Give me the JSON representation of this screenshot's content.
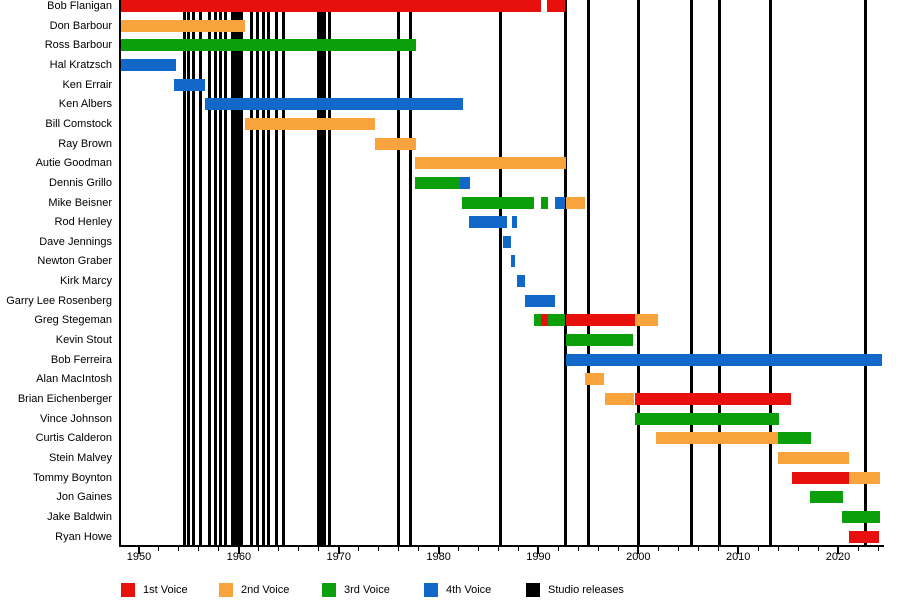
{
  "legend": {
    "items": [
      {
        "label": "1st Voice",
        "voice": "1st"
      },
      {
        "label": "2nd Voice",
        "voice": "2nd"
      },
      {
        "label": "3rd Voice",
        "voice": "3rd"
      },
      {
        "label": "4th Voice",
        "voice": "4th"
      },
      {
        "label": "Studio releases",
        "voice": "studio"
      }
    ]
  },
  "colors": {
    "1st": "#e8100d",
    "2nd": "#f8a33b",
    "3rd": "#0ba00b",
    "4th": "#1168c8",
    "studio": "#000000",
    "axis": "#000000",
    "background": "#ffffff"
  },
  "chart_data": {
    "type": "gantt",
    "title": "",
    "xlabel": "",
    "ylabel": "",
    "grid": false,
    "legend_position": "bottom",
    "x_axis": {
      "min": 1948.2,
      "max": 2024.6,
      "decades": [
        "1950",
        "1960",
        "1970",
        "1980",
        "1990",
        "2000",
        "2010",
        "2020"
      ],
      "decade_values": [
        1950,
        1960,
        1970,
        1980,
        1990,
        2000,
        2010,
        2020
      ],
      "minor_tick_step_years": 2,
      "minor_tick_start": 1950,
      "minor_tick_end": 2024
    },
    "members": [
      {
        "name": "Bob Flanigan",
        "segments": [
          {
            "voice": "1st",
            "start": 1948.2,
            "end": 1990.3
          },
          {
            "voice": "1st",
            "start": 1990.9,
            "end": 1992.7
          }
        ]
      },
      {
        "name": "Don Barbour",
        "segments": [
          {
            "voice": "2nd",
            "start": 1948.2,
            "end": 1960.6
          }
        ]
      },
      {
        "name": "Ross Barbour",
        "segments": [
          {
            "voice": "3rd",
            "start": 1948.2,
            "end": 1977.7
          }
        ]
      },
      {
        "name": "Hal Kratzsch",
        "segments": [
          {
            "voice": "4th",
            "start": 1948.2,
            "end": 1953.7
          }
        ]
      },
      {
        "name": "Ken Errair",
        "segments": [
          {
            "voice": "4th",
            "start": 1953.5,
            "end": 1956.6
          }
        ]
      },
      {
        "name": "Ken Albers",
        "segments": [
          {
            "voice": "4th",
            "start": 1956.6,
            "end": 1982.4
          }
        ]
      },
      {
        "name": "Bill Comstock",
        "segments": [
          {
            "voice": "2nd",
            "start": 1960.6,
            "end": 1973.6
          }
        ]
      },
      {
        "name": "Ray Brown",
        "segments": [
          {
            "voice": "2nd",
            "start": 1973.6,
            "end": 1977.7
          }
        ]
      },
      {
        "name": "Autie Goodman",
        "segments": [
          {
            "voice": "2nd",
            "start": 1977.6,
            "end": 1992.8
          }
        ]
      },
      {
        "name": "Dennis Grillo",
        "segments": [
          {
            "voice": "3rd",
            "start": 1977.6,
            "end": 1982.1
          },
          {
            "voice": "4th",
            "start": 1982.1,
            "end": 1983.1
          }
        ]
      },
      {
        "name": "Mike Beisner",
        "segments": [
          {
            "voice": "3rd",
            "start": 1982.3,
            "end": 1989.6
          },
          {
            "voice": "3rd",
            "start": 1990.3,
            "end": 1991.0
          },
          {
            "voice": "4th",
            "start": 1991.7,
            "end": 1992.7
          },
          {
            "voice": "2nd",
            "start": 1992.8,
            "end": 1994.7
          }
        ]
      },
      {
        "name": "Rod Henley",
        "segments": [
          {
            "voice": "4th",
            "start": 1983.0,
            "end": 1986.9
          },
          {
            "voice": "4th",
            "start": 1987.4,
            "end": 1987.9
          }
        ]
      },
      {
        "name": "Dave Jennings",
        "segments": [
          {
            "voice": "4th",
            "start": 1986.5,
            "end": 1987.3
          }
        ]
      },
      {
        "name": "Newton Graber",
        "segments": [
          {
            "voice": "4th",
            "start": 1987.3,
            "end": 1987.7
          }
        ]
      },
      {
        "name": "Kirk Marcy",
        "segments": [
          {
            "voice": "4th",
            "start": 1987.9,
            "end": 1988.7
          }
        ]
      },
      {
        "name": "Garry Lee Rosenberg",
        "segments": [
          {
            "voice": "4th",
            "start": 1988.7,
            "end": 1991.7
          }
        ]
      },
      {
        "name": "Greg Stegeman",
        "segments": [
          {
            "voice": "3rd",
            "start": 1989.6,
            "end": 1990.3
          },
          {
            "voice": "1st",
            "start": 1990.3,
            "end": 1991.0
          },
          {
            "voice": "3rd",
            "start": 1991.0,
            "end": 1992.7
          },
          {
            "voice": "1st",
            "start": 1992.8,
            "end": 1999.7
          },
          {
            "voice": "2nd",
            "start": 1999.7,
            "end": 2002.0
          }
        ]
      },
      {
        "name": "Kevin Stout",
        "segments": [
          {
            "voice": "3rd",
            "start": 1992.8,
            "end": 1999.5
          }
        ]
      },
      {
        "name": "Bob Ferreira",
        "segments": [
          {
            "voice": "4th",
            "start": 1992.8,
            "end": 2024.4
          }
        ]
      },
      {
        "name": "Alan MacIntosh",
        "segments": [
          {
            "voice": "2nd",
            "start": 1994.7,
            "end": 1996.6
          }
        ]
      },
      {
        "name": "Brian Eichenberger",
        "segments": [
          {
            "voice": "2nd",
            "start": 1996.7,
            "end": 1999.6
          },
          {
            "voice": "1st",
            "start": 1999.7,
            "end": 2015.3
          }
        ]
      },
      {
        "name": "Vince Johnson",
        "segments": [
          {
            "voice": "3rd",
            "start": 1999.7,
            "end": 2014.1
          }
        ]
      },
      {
        "name": "Curtis Calderon",
        "segments": [
          {
            "voice": "2nd",
            "start": 2001.8,
            "end": 2014.0
          },
          {
            "voice": "3rd",
            "start": 2014.0,
            "end": 2017.3
          }
        ]
      },
      {
        "name": "Stein Malvey",
        "segments": [
          {
            "voice": "2nd",
            "start": 2014.0,
            "end": 2021.1
          }
        ]
      },
      {
        "name": "Tommy Boynton",
        "segments": [
          {
            "voice": "1st",
            "start": 2015.4,
            "end": 2021.1
          },
          {
            "voice": "2nd",
            "start": 2021.1,
            "end": 2024.2
          }
        ]
      },
      {
        "name": "Jon Gaines",
        "segments": [
          {
            "voice": "3rd",
            "start": 2017.2,
            "end": 2020.5
          }
        ]
      },
      {
        "name": "Jake Baldwin",
        "segments": [
          {
            "voice": "3rd",
            "start": 2020.4,
            "end": 2024.2
          }
        ]
      },
      {
        "name": "Ryan Howe",
        "segments": [
          {
            "voice": "1st",
            "start": 2021.1,
            "end": 2024.1
          }
        ]
      }
    ],
    "studio_release_years": [
      1954.6,
      1954.95,
      1955.5,
      1956.2,
      1957.1,
      1957.7,
      1958.2,
      1958.7,
      1959.4,
      1959.7,
      1960.0,
      1960.3,
      1961.3,
      1961.9,
      1962.45,
      1963.0,
      1963.8,
      1964.5,
      1968.0,
      1968.3,
      1968.6,
      1969.1,
      1976.0,
      1977.2,
      1986.2,
      1992.7,
      1995.0,
      2000.0,
      2005.3,
      2008.1,
      2013.2,
      2022.7
    ]
  }
}
